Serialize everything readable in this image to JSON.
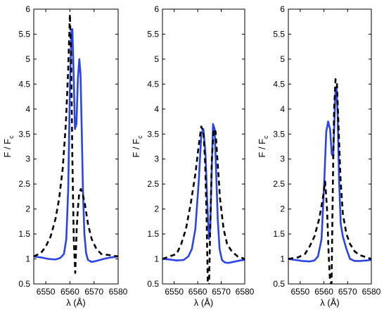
{
  "chart_data": [
    {
      "type": "line",
      "xlabel": "λ (Å)",
      "ylabel": "F / F",
      "ylabel_subscript": "c",
      "xlim": [
        6545,
        6580
      ],
      "ylim": [
        0.5,
        6
      ],
      "xticks": [
        "6550",
        "6560",
        "6570",
        "6580"
      ],
      "yticks": [
        "0.5",
        "1",
        "1.5",
        "2",
        "2.5",
        "3",
        "3.5",
        "4",
        "4.5",
        "5",
        "5.5",
        "6"
      ],
      "series": [
        {
          "style": "solid",
          "color": "#2b44e8",
          "x": [
            6545,
            6548,
            6551,
            6554,
            6556,
            6557.5,
            6558.5,
            6559.3,
            6560,
            6560.6,
            6561.0,
            6561.6,
            6562.1,
            6562.7,
            6563.3,
            6563.9,
            6564.4,
            6564.9,
            6565.4,
            6566.0,
            6566.7,
            6567.5,
            6569,
            6571,
            6574,
            6577,
            6580
          ],
          "y": [
            1.05,
            1.03,
            1.0,
            0.99,
            1.02,
            1.1,
            1.4,
            2.4,
            4.4,
            5.55,
            5.6,
            4.6,
            3.6,
            3.7,
            4.6,
            5.0,
            4.7,
            3.6,
            2.4,
            1.5,
            1.12,
            0.98,
            0.94,
            0.96,
            1.0,
            1.03,
            1.05
          ]
        },
        {
          "style": "dashed",
          "color": "#000000",
          "x": [
            6545,
            6548,
            6550,
            6552,
            6554,
            6555.5,
            6557,
            6558.3,
            6559.3,
            6560.0,
            6560.5,
            6561.0,
            6561.6,
            6562.2,
            6562.8,
            6563.3,
            6563.8,
            6564.5,
            6565.3,
            6566.2,
            6567.5,
            6569,
            6571,
            6573,
            6576,
            6580
          ],
          "y": [
            1.05,
            1.12,
            1.25,
            1.45,
            1.8,
            2.2,
            2.8,
            3.7,
            4.8,
            5.9,
            5.1,
            3.0,
            1.4,
            0.72,
            1.6,
            2.0,
            2.3,
            2.4,
            2.3,
            2.1,
            1.7,
            1.4,
            1.2,
            1.1,
            1.08,
            1.05
          ]
        }
      ]
    },
    {
      "type": "line",
      "xlabel": "λ (Å)",
      "ylabel": "F / F",
      "ylabel_subscript": "c",
      "xlim": [
        6545,
        6580
      ],
      "ylim": [
        0.5,
        6
      ],
      "xticks": [
        "6550",
        "6560",
        "6570",
        "6580"
      ],
      "yticks": [
        "0.5",
        "1",
        "1.5",
        "2",
        "2.5",
        "3",
        "3.5",
        "4",
        "4.5",
        "5",
        "5.5",
        "6"
      ],
      "series": [
        {
          "style": "solid",
          "color": "#2b44e8",
          "x": [
            6545,
            6548,
            6551,
            6554,
            6556,
            6557.5,
            6559,
            6560.5,
            6561.5,
            6562.4,
            6563.3,
            6564.0,
            6564.8,
            6565.3,
            6565.8,
            6566.5,
            6567.2,
            6567.8,
            6568.5,
            6569.3,
            6570.3,
            6571.5,
            6573,
            6575,
            6578,
            6580
          ],
          "y": [
            1.0,
            0.99,
            0.97,
            0.98,
            1.05,
            1.2,
            1.6,
            2.6,
            3.5,
            3.6,
            3.1,
            2.2,
            1.4,
            1.6,
            2.5,
            3.7,
            3.6,
            2.8,
            1.8,
            1.2,
            0.98,
            0.93,
            0.92,
            0.94,
            0.97,
            0.98
          ]
        },
        {
          "style": "dashed",
          "color": "#000000",
          "x": [
            6545,
            6548,
            6551,
            6553,
            6555,
            6557,
            6559,
            6560.5,
            6561.5,
            6562.4,
            6563.2,
            6563.8,
            6564.3,
            6564.8,
            6565.3,
            6566.0,
            6566.8,
            6567.6,
            6568.5,
            6569.5,
            6571,
            6572.5,
            6574.5,
            6577,
            6580
          ],
          "y": [
            1.0,
            1.05,
            1.1,
            1.3,
            1.6,
            2.1,
            2.7,
            3.3,
            3.65,
            3.55,
            2.9,
            1.8,
            0.5,
            0.45,
            1.6,
            3.0,
            3.6,
            3.55,
            2.9,
            2.2,
            1.6,
            1.3,
            1.15,
            1.05,
            1.0
          ]
        }
      ]
    },
    {
      "type": "line",
      "xlabel": "λ (Å)",
      "ylabel": "F / F",
      "ylabel_subscript": "c",
      "xlim": [
        6545,
        6580
      ],
      "ylim": [
        0.5,
        6
      ],
      "xticks": [
        "6550",
        "6560",
        "6570",
        "6580"
      ],
      "yticks": [
        "0.5",
        "1",
        "1.5",
        "2",
        "2.5",
        "3",
        "3.5",
        "4",
        "4.5",
        "5",
        "5.5",
        "6"
      ],
      "series": [
        {
          "style": "solid",
          "color": "#2b44e8",
          "x": [
            6545,
            6548,
            6551,
            6554,
            6556,
            6557.5,
            6559,
            6560.2,
            6561.0,
            6561.8,
            6562.6,
            6563.3,
            6563.9,
            6564.3,
            6564.8,
            6565.3,
            6565.8,
            6566.4,
            6567.1,
            6568,
            6569.5,
            6571,
            6573,
            6575,
            6578,
            6580
          ],
          "y": [
            1.0,
            0.98,
            0.96,
            0.95,
            0.97,
            1.05,
            1.4,
            2.6,
            3.55,
            3.75,
            3.6,
            3.1,
            3.05,
            3.6,
            4.3,
            4.45,
            3.9,
            2.6,
            1.7,
            1.45,
            1.2,
            1.0,
            0.96,
            0.96,
            0.97,
            0.98
          ]
        },
        {
          "style": "dashed",
          "color": "#000000",
          "x": [
            6545,
            6549,
            6552,
            6554,
            6556,
            6558,
            6559.5,
            6560.5,
            6561.3,
            6562.0,
            6562.6,
            6563.2,
            6563.8,
            6564.3,
            6564.9,
            6565.5,
            6566.2,
            6567.0,
            6568,
            6569.5,
            6571,
            6573,
            6575,
            6578,
            6580
          ],
          "y": [
            1.0,
            1.03,
            1.1,
            1.25,
            1.45,
            1.8,
            2.2,
            2.55,
            2.0,
            1.1,
            0.55,
            0.5,
            2.6,
            4.0,
            4.6,
            4.5,
            3.6,
            2.6,
            1.9,
            1.5,
            1.3,
            1.15,
            1.08,
            1.03,
            1.0
          ]
        }
      ]
    }
  ]
}
